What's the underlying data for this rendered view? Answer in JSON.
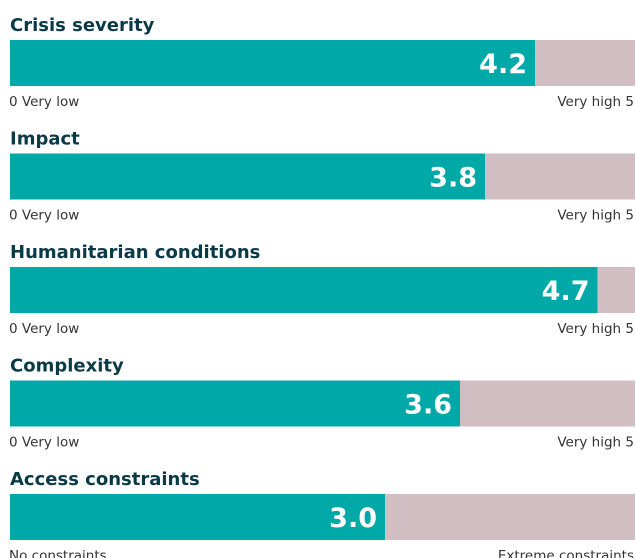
{
  "chart_data": [
    {
      "type": "bar",
      "title": "Crisis severity",
      "values": [
        4.2
      ],
      "xlim": [
        0,
        5
      ],
      "min_label": "0 Very low",
      "max_label": "Very high 5",
      "color": "#00a9a8",
      "track_color": "#d0bec3"
    },
    {
      "type": "bar",
      "title": "Impact",
      "values": [
        3.8
      ],
      "xlim": [
        0,
        5
      ],
      "min_label": "0 Very low",
      "max_label": "Very high 5",
      "color": "#00a9a8",
      "track_color": "#d0bec3"
    },
    {
      "type": "bar",
      "title": "Humanitarian conditions",
      "values": [
        4.7
      ],
      "xlim": [
        0,
        5
      ],
      "min_label": "0 Very low",
      "max_label": "Very high 5",
      "color": "#00a9a8",
      "track_color": "#d0bec3"
    },
    {
      "type": "bar",
      "title": "Complexity",
      "values": [
        3.6
      ],
      "xlim": [
        0,
        5
      ],
      "min_label": "0 Very low",
      "max_label": "Very high 5",
      "color": "#00a9a8",
      "track_color": "#d0bec3"
    },
    {
      "type": "bar",
      "title": "Access constraints",
      "values": [
        3
      ],
      "value_labels": [
        "3.0"
      ],
      "xlim": [
        0,
        5
      ],
      "min_label": "No constraints",
      "max_label": "Extreme constraints",
      "color": "#00a9a8",
      "track_color": "#d0bec3"
    }
  ]
}
